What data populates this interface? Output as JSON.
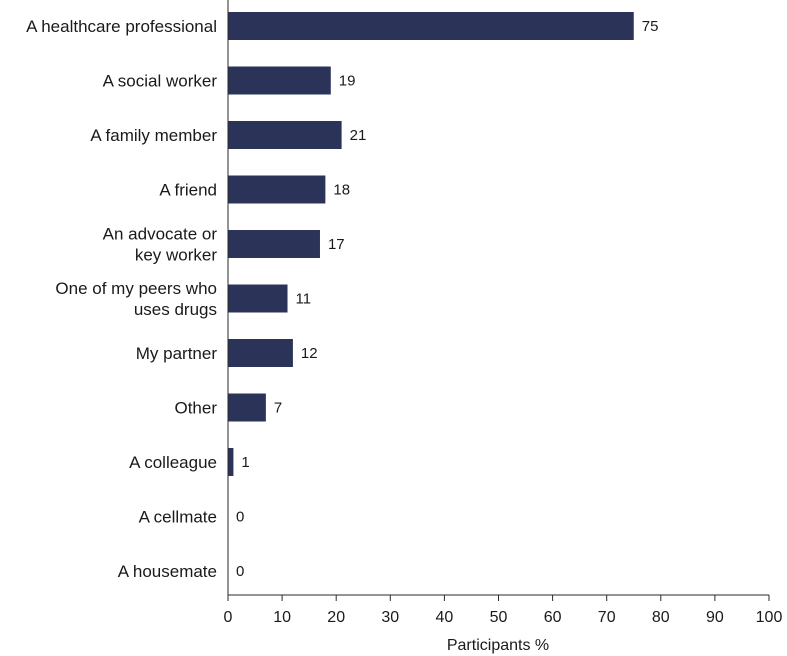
{
  "chart_data": {
    "type": "bar",
    "orientation": "horizontal",
    "categories": [
      [
        "A healthcare professional"
      ],
      [
        "A social worker"
      ],
      [
        "A family member"
      ],
      [
        "A friend"
      ],
      [
        "An advocate or",
        "key worker"
      ],
      [
        "One of my peers who",
        "uses drugs"
      ],
      [
        "My partner"
      ],
      [
        "Other"
      ],
      [
        "A colleague"
      ],
      [
        "A cellmate"
      ],
      [
        "A housemate"
      ]
    ],
    "values": [
      75,
      19,
      21,
      18,
      17,
      11,
      12,
      7,
      1,
      0,
      0
    ],
    "xlabel": "Participants %",
    "ylabel": "",
    "xlim": [
      0,
      100
    ],
    "xticks": [
      0,
      10,
      20,
      30,
      40,
      50,
      60,
      70,
      80,
      90,
      100
    ],
    "bar_color": "#2b3358",
    "grid": false,
    "data_labels": true
  }
}
